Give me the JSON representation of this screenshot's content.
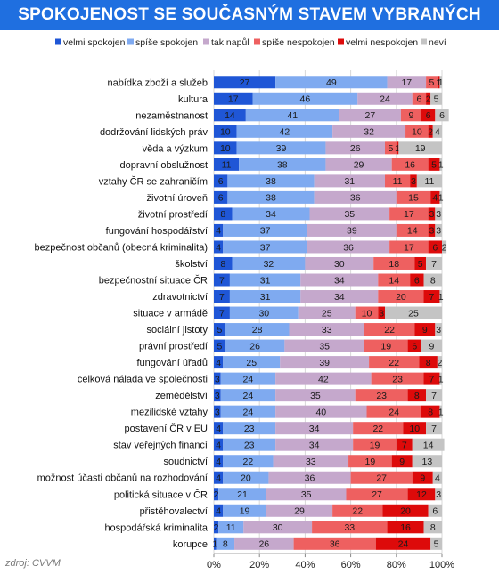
{
  "chart_data": {
    "type": "bar",
    "orientation": "horizontal",
    "stacked": true,
    "title": "SPOKOJENOST SE SOUČASNÝM STAVEM VYBRANÝCH OBLASTÍ (%)",
    "source": "zdroj: CVVM",
    "legend_position": "top",
    "xlim": [
      0,
      100
    ],
    "x_ticks": [
      "0%",
      "20%",
      "40%",
      "60%",
      "80%",
      "100%"
    ],
    "categories": [
      "nabídka zboží a služeb",
      "kultura",
      "nezaměstnanost",
      "dodržování lidských práv",
      "věda a výzkum",
      "dopravní obslužnost",
      "vztahy ČR se zahraničím",
      "životní úroveň",
      "životní prostředí",
      "fungování hospodářství",
      "bezpečnost občanů (obecná kriminalita)",
      "školství",
      "bezpečnostní situace ČR",
      "zdravotnictví",
      "situace v armádě",
      "sociální jistoty",
      "právní prostředí",
      "fungování úřadů",
      "celková nálada ve společnosti",
      "zemědělství",
      "mezilidské vztahy",
      "postavení ČR v EU",
      "stav veřejných financí",
      "soudnictví",
      "možnost účasti občanů na rozhodování",
      "politická situace v ČR",
      "přistěhovalectví",
      "hospodářská kriminalita",
      "korupce"
    ],
    "series": [
      {
        "name": "velmi spokojen",
        "color": "#1f56d6",
        "values": [
          27,
          17,
          14,
          10,
          10,
          11,
          6,
          6,
          8,
          4,
          4,
          8,
          7,
          7,
          7,
          5,
          5,
          4,
          3,
          3,
          3,
          4,
          4,
          4,
          4,
          2,
          4,
          2,
          1
        ]
      },
      {
        "name": "spíše spokojen",
        "color": "#7faaf0",
        "values": [
          49,
          46,
          41,
          42,
          39,
          38,
          38,
          38,
          34,
          37,
          37,
          32,
          31,
          31,
          30,
          28,
          26,
          25,
          24,
          24,
          24,
          23,
          23,
          22,
          20,
          21,
          19,
          11,
          8
        ]
      },
      {
        "name": "tak napůl",
        "color": "#c5a8cc",
        "values": [
          17,
          24,
          27,
          32,
          26,
          29,
          31,
          36,
          35,
          39,
          36,
          30,
          34,
          34,
          25,
          33,
          35,
          39,
          42,
          35,
          40,
          34,
          34,
          33,
          36,
          35,
          29,
          30,
          26
        ]
      },
      {
        "name": "spíše nespokojen",
        "color": "#ee6060",
        "values": [
          5,
          6,
          9,
          10,
          5,
          16,
          11,
          15,
          17,
          14,
          17,
          18,
          14,
          20,
          10,
          22,
          19,
          22,
          23,
          23,
          24,
          22,
          19,
          19,
          27,
          27,
          22,
          33,
          36
        ]
      },
      {
        "name": "velmi nespokojen",
        "color": "#dd0a0a",
        "values": [
          1,
          2,
          6,
          2,
          1,
          5,
          3,
          4,
          3,
          3,
          6,
          5,
          6,
          7,
          3,
          9,
          6,
          8,
          7,
          8,
          8,
          10,
          7,
          9,
          9,
          12,
          20,
          16,
          24
        ]
      },
      {
        "name": "neví",
        "color": "#c4c4c4",
        "values": [
          1,
          5,
          6,
          4,
          19,
          1,
          11,
          1,
          3,
          3,
          2,
          7,
          8,
          1,
          25,
          3,
          9,
          2,
          1,
          7,
          1,
          7,
          14,
          13,
          4,
          3,
          6,
          8,
          5
        ]
      }
    ]
  }
}
